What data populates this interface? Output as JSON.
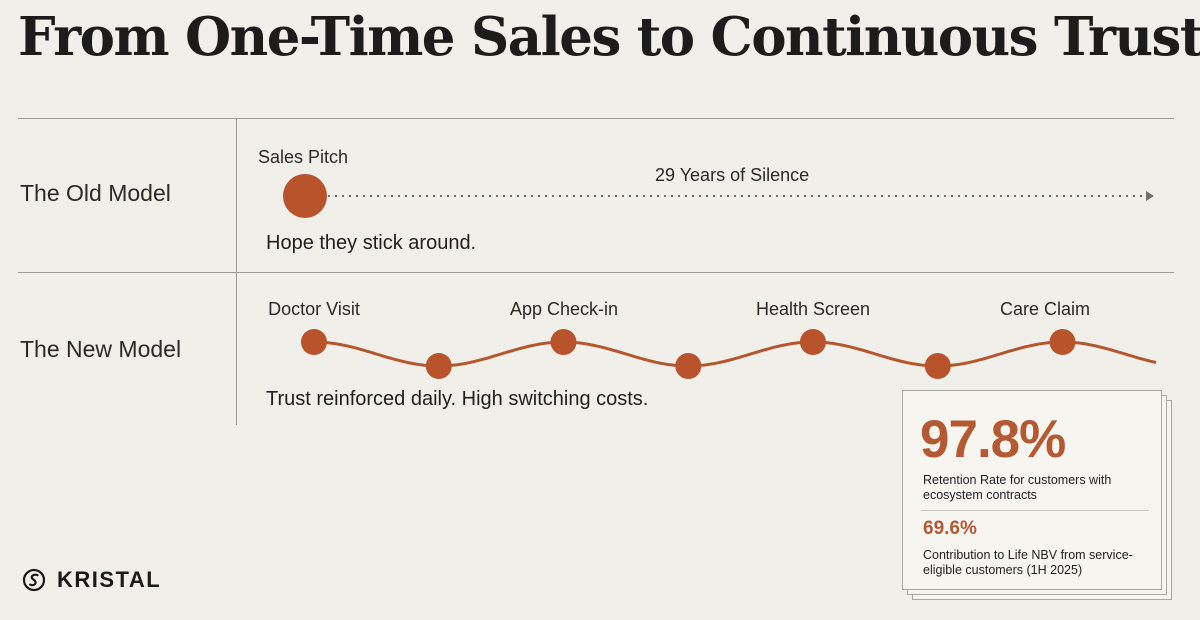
{
  "title": "From One-Time Sales to Continuous Trust",
  "old_model": {
    "label": "The Old Model",
    "event_label": "Sales Pitch",
    "timeline_label": "29 Years of Silence",
    "caption": "Hope they stick around."
  },
  "new_model": {
    "label": "The New Model",
    "events": [
      "Doctor Visit",
      "App Check-in",
      "Health Screen",
      "Care Claim"
    ],
    "caption": "Trust reinforced daily. High switching costs."
  },
  "stats": {
    "primary_value": "97.8%",
    "primary_desc": "Retention Rate for customers with ecosystem contracts",
    "secondary_value": "69.6%",
    "secondary_desc": "Contribution to Life NBV from service-eligible customers (1H 2025)"
  },
  "logo": {
    "text": "KRISTAL",
    "icon": "kristal-logo-icon"
  },
  "colors": {
    "background": "#f1efe9",
    "accent": "#b45a33",
    "node": "#b8532c",
    "text": "#1f1f1f",
    "divider": "#9d9b96"
  }
}
